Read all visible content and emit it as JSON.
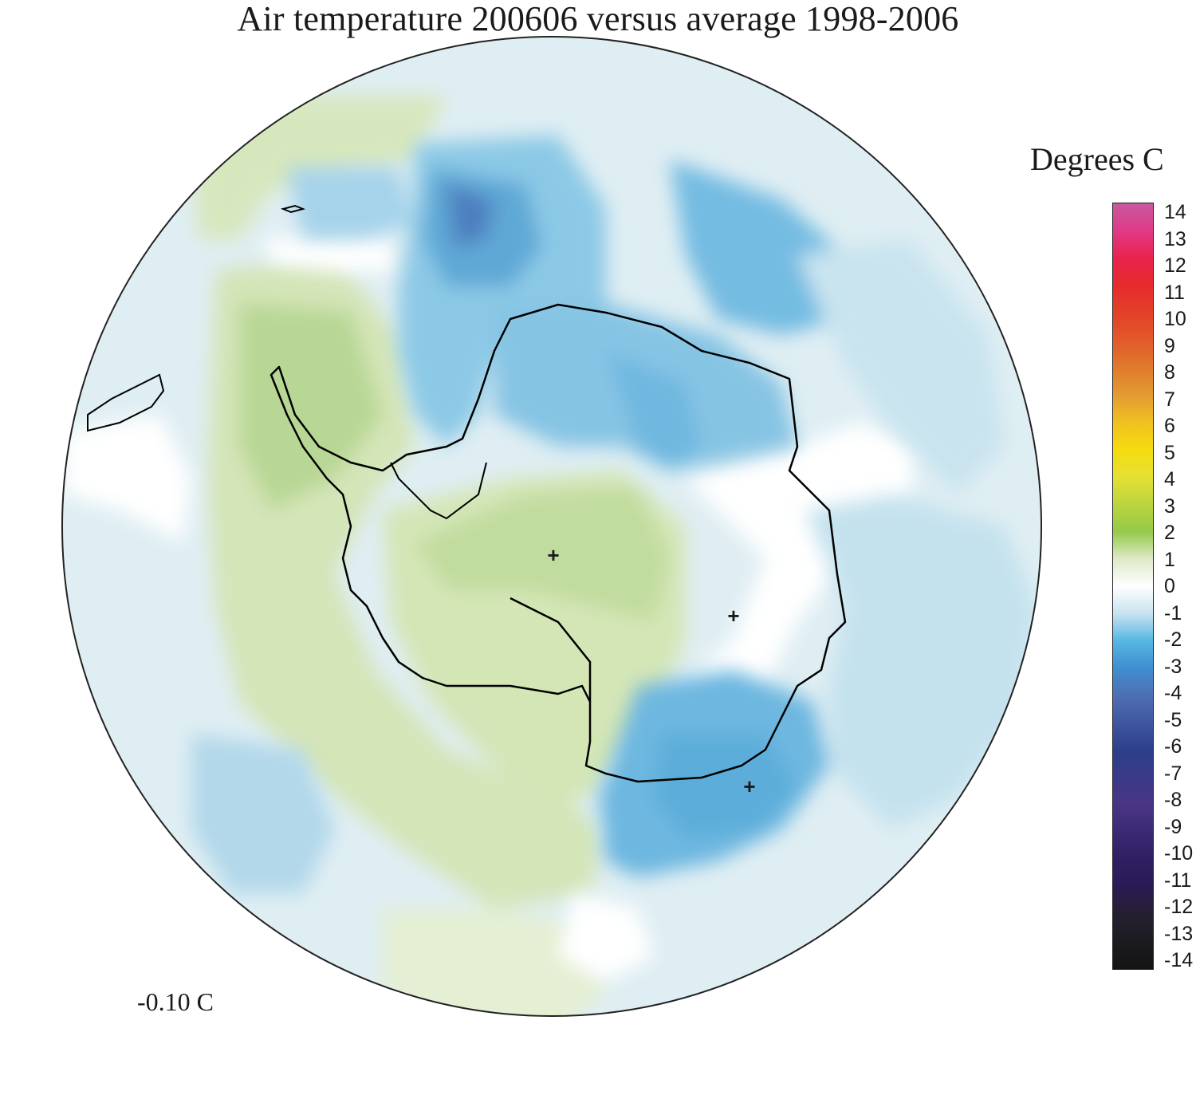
{
  "title": "Air temperature 200606 versus average 1998-2006",
  "units_label": "Degrees C",
  "mean_value_label": "-0.10 C",
  "colorbar": {
    "ticks": [
      "14",
      "13",
      "12",
      "11",
      "10",
      "9",
      "8",
      "7",
      "6",
      "5",
      "4",
      "3",
      "2",
      "1",
      "0",
      "-1",
      "-2",
      "-3",
      "-4",
      "-5",
      "-6",
      "-7",
      "-8",
      "-9",
      "-10",
      "-11",
      "-12",
      "-13",
      "-14"
    ],
    "colors": [
      "#c75aa0",
      "#e03a86",
      "#e8234e",
      "#e62b2b",
      "#e3402a",
      "#e15a2a",
      "#e07a2c",
      "#e39a32",
      "#f0c020",
      "#f5dc10",
      "#e6e033",
      "#bcd53e",
      "#96c94a",
      "#dde9c6",
      "#ffffff",
      "#c8e3ef",
      "#56b7e3",
      "#3f8fd0",
      "#4f6fb3",
      "#3f56a0",
      "#2d3f8a",
      "#3a3a88",
      "#4a3585",
      "#3a2a74",
      "#2e1f62",
      "#2a1a55",
      "#252030",
      "#1c1c20",
      "#141414"
    ]
  },
  "markers": [
    "+",
    "+",
    "+"
  ]
}
